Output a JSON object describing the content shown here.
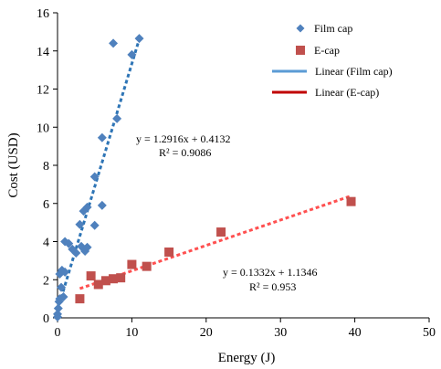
{
  "chart_data": {
    "type": "scatter",
    "xlabel": "Energy (J)",
    "ylabel": "Cost (USD)",
    "xlim": [
      0,
      50
    ],
    "ylim": [
      0,
      16
    ],
    "x_ticks": [
      "0",
      "10",
      "20",
      "30",
      "40",
      "50"
    ],
    "y_ticks": [
      "0",
      "2",
      "4",
      "6",
      "8",
      "10",
      "12",
      "14",
      "16"
    ],
    "grid": false,
    "legend_position": "top-right",
    "series": [
      {
        "name": "Film cap",
        "marker": "diamond",
        "color": "#4F81BD",
        "points": [
          [
            0.0,
            0.05
          ],
          [
            0.0,
            0.2
          ],
          [
            0.1,
            0.5
          ],
          [
            0.2,
            0.85
          ],
          [
            0.3,
            1.0
          ],
          [
            0.3,
            2.3
          ],
          [
            0.5,
            1.6
          ],
          [
            0.6,
            2.5
          ],
          [
            0.8,
            1.1
          ],
          [
            1.0,
            2.4
          ],
          [
            1.0,
            4.0
          ],
          [
            1.5,
            3.9
          ],
          [
            2.0,
            3.6
          ],
          [
            2.5,
            3.4
          ],
          [
            3.0,
            4.9
          ],
          [
            3.2,
            3.75
          ],
          [
            3.5,
            5.6
          ],
          [
            3.7,
            3.5
          ],
          [
            4.0,
            3.7
          ],
          [
            4.0,
            5.8
          ],
          [
            5.0,
            4.85
          ],
          [
            5.0,
            7.4
          ],
          [
            6.0,
            5.9
          ],
          [
            6.0,
            9.45
          ],
          [
            7.5,
            14.4
          ],
          [
            8.0,
            10.45
          ],
          [
            10.0,
            13.8
          ],
          [
            11.0,
            14.65
          ]
        ]
      },
      {
        "name": "E-cap",
        "marker": "square",
        "color": "#C0504D",
        "points": [
          [
            3.0,
            1.0
          ],
          [
            4.5,
            2.2
          ],
          [
            5.5,
            1.75
          ],
          [
            6.5,
            1.95
          ],
          [
            7.5,
            2.05
          ],
          [
            8.5,
            2.1
          ],
          [
            10.0,
            2.8
          ],
          [
            12.0,
            2.7
          ],
          [
            15.0,
            3.45
          ],
          [
            22.0,
            4.5
          ],
          [
            39.5,
            6.1
          ]
        ]
      }
    ],
    "trendlines": [
      {
        "name": "Linear (Film cap)",
        "slope": 1.2916,
        "intercept": 0.4132,
        "x_range": [
          0,
          11
        ],
        "color": "#2E75B6",
        "equation": "y = 1.2916x + 0.4132",
        "r2": "R² = 0.9086"
      },
      {
        "name": "Linear (E-cap)",
        "slope": 0.1332,
        "intercept": 1.1346,
        "x_range": [
          3,
          39.5
        ],
        "color": "#FF5050",
        "equation": "y = 0.1332x + 1.1346",
        "r2": "R² = 0.953"
      }
    ],
    "legend": [
      {
        "label": "Film cap",
        "kind": "diamond",
        "color": "#4F81BD"
      },
      {
        "label": "E-cap",
        "kind": "square",
        "color": "#C0504D"
      },
      {
        "label": "Linear (Film cap)",
        "kind": "line",
        "color": "#5B9BD5"
      },
      {
        "label": "Linear (E-cap)",
        "kind": "line",
        "color": "#C00000"
      }
    ],
    "annotation_colors": {
      "film": "#4F81BD",
      "ecap": "#C0504D"
    }
  }
}
